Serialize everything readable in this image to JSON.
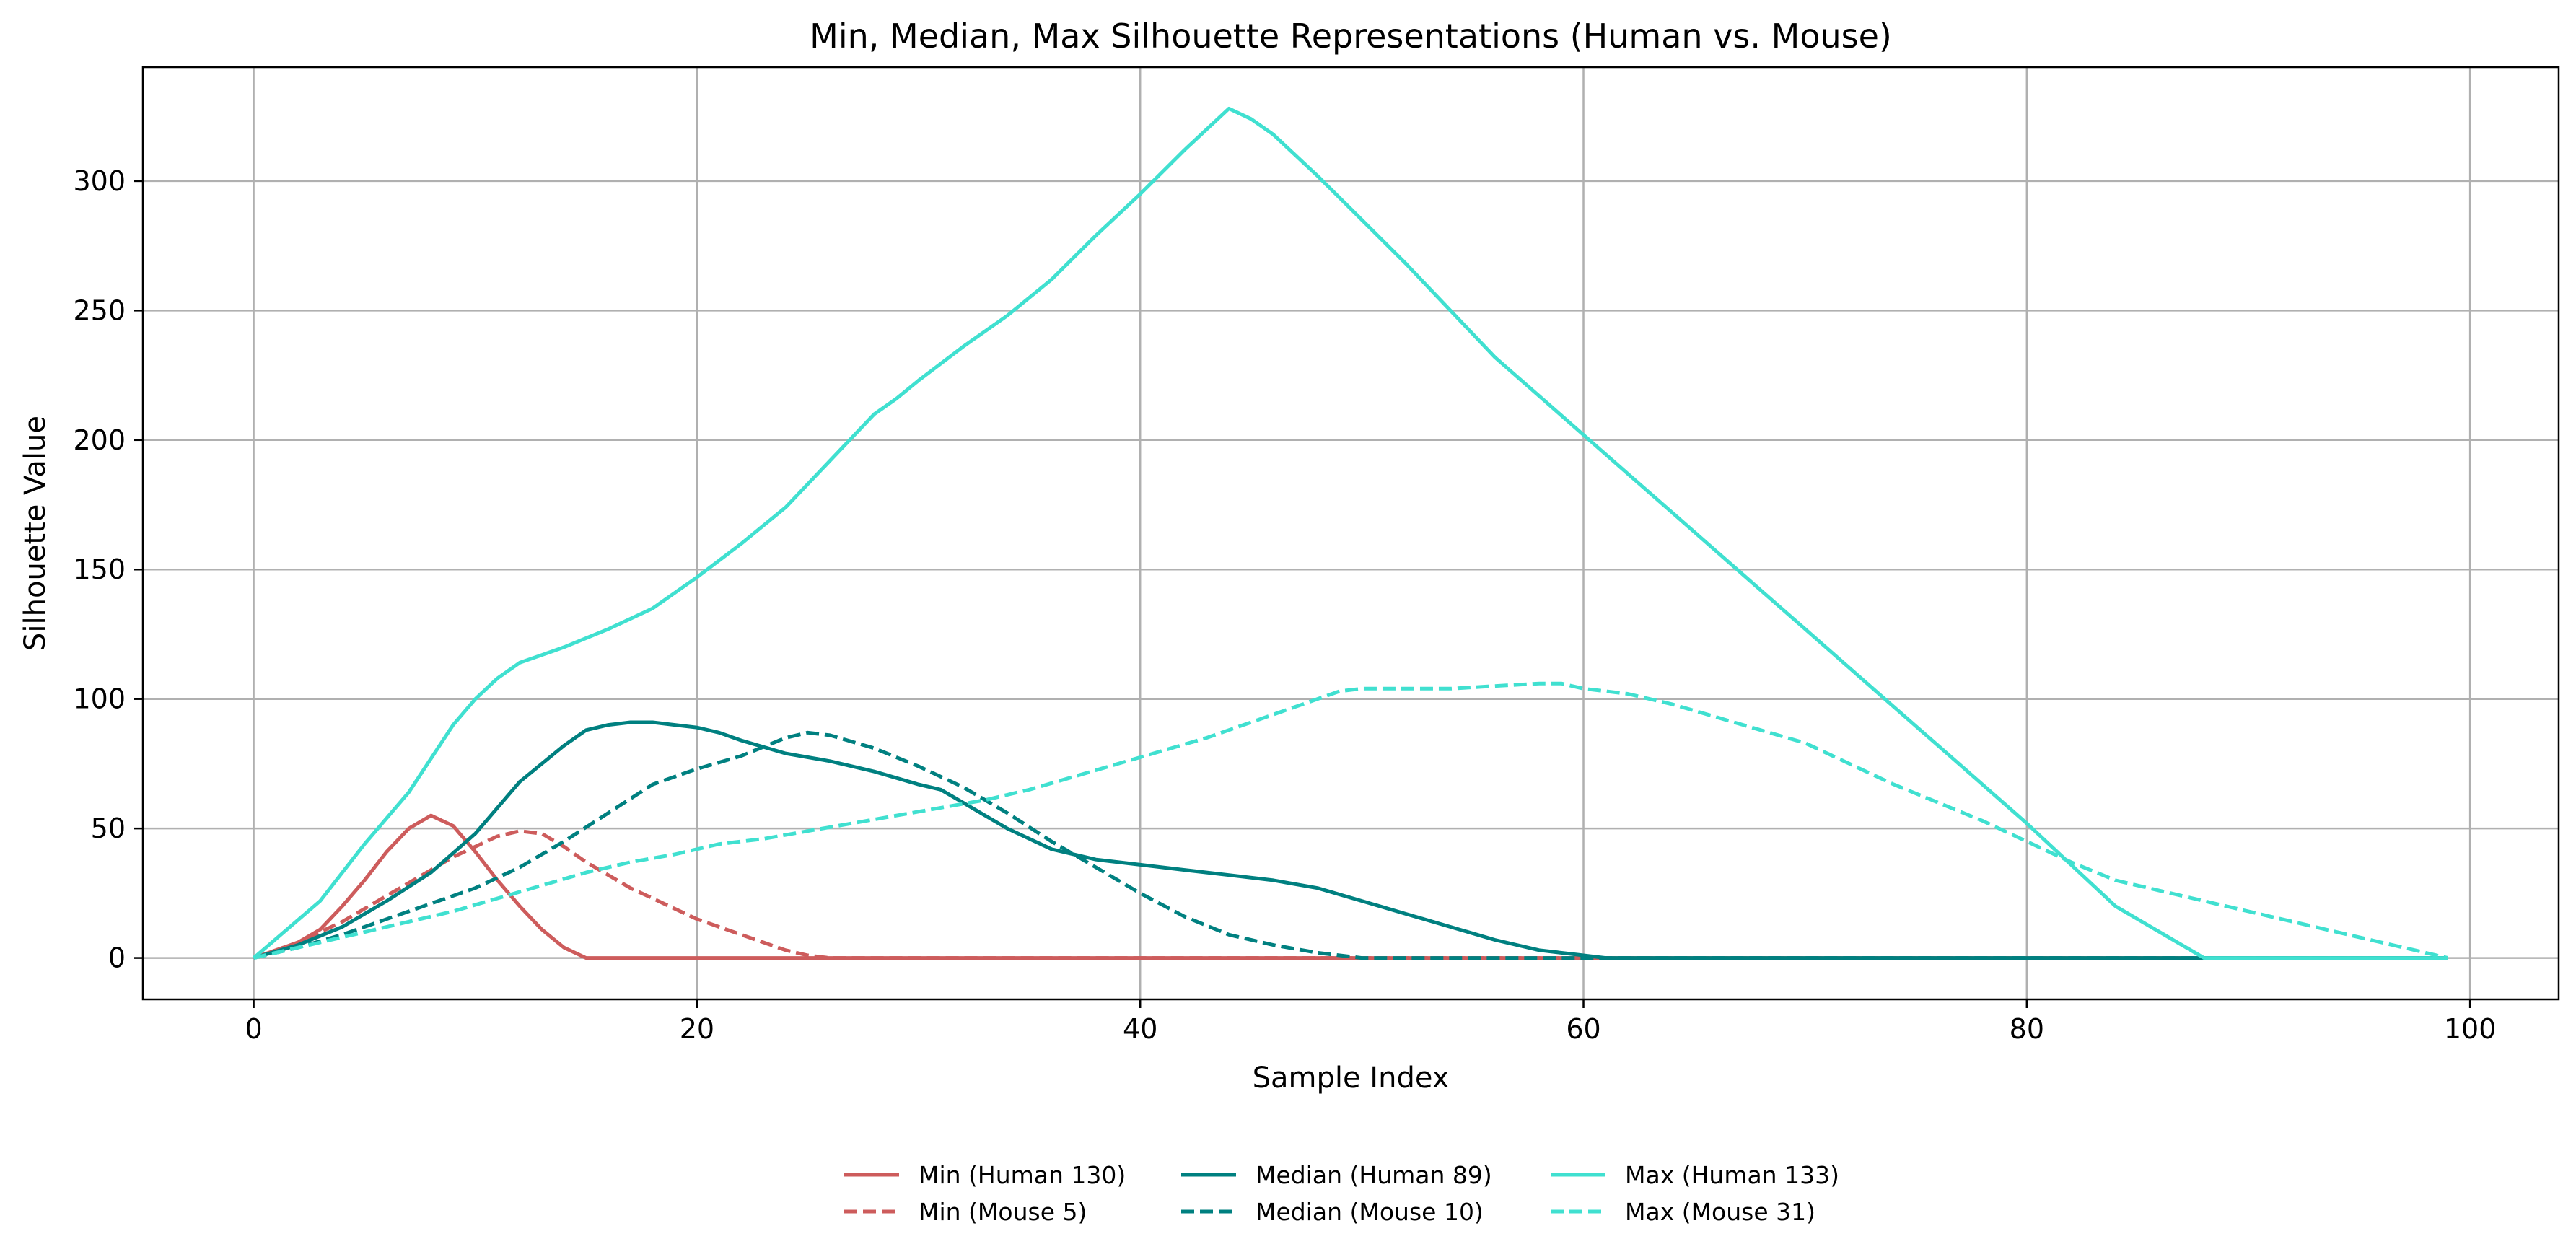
{
  "chart_data": {
    "type": "line",
    "title": "Min, Median, Max Silhouette Representations (Human vs. Mouse)",
    "xlabel": "Sample Index",
    "ylabel": "Silhouette Value",
    "xlim": [
      -5,
      104
    ],
    "ylim": [
      -16,
      344
    ],
    "xticks": [
      0,
      20,
      40,
      60,
      80,
      100
    ],
    "yticks": [
      0,
      50,
      100,
      150,
      200,
      250,
      300
    ],
    "grid": true,
    "legend_position": "bottom-center",
    "series": [
      {
        "name": "Min (Human 130)",
        "color": "#cd5c5c",
        "dash": "solid",
        "x": [
          0,
          1,
          2,
          3,
          4,
          5,
          6,
          7,
          8,
          9,
          10,
          11,
          12,
          13,
          14,
          15,
          99
        ],
        "y": [
          0,
          3,
          6,
          11,
          20,
          30,
          41,
          50,
          55,
          51,
          41,
          30,
          20,
          11,
          4,
          0,
          0
        ]
      },
      {
        "name": "Min (Mouse 5)",
        "color": "#cd5c5c",
        "dash": "dashed",
        "x": [
          0,
          1,
          2,
          3,
          4,
          5,
          6,
          7,
          8,
          9,
          10,
          11,
          12,
          13,
          14,
          15,
          16,
          17,
          18,
          19,
          20,
          21,
          22,
          23,
          24,
          25,
          26,
          99
        ],
        "y": [
          0,
          3,
          6,
          10,
          14,
          19,
          24,
          29,
          34,
          39,
          43,
          47,
          49,
          48,
          43,
          37,
          32,
          27,
          23,
          19,
          15,
          12,
          9,
          6,
          3,
          1,
          0,
          0
        ]
      },
      {
        "name": "Median (Human 89)",
        "color": "#008080",
        "dash": "solid",
        "x": [
          0,
          2,
          4,
          6,
          8,
          10,
          12,
          14,
          15,
          16,
          17,
          18,
          19,
          20,
          21,
          22,
          24,
          26,
          28,
          30,
          31,
          32,
          34,
          36,
          38,
          40,
          42,
          44,
          46,
          48,
          50,
          52,
          54,
          56,
          58,
          60,
          61,
          99
        ],
        "y": [
          0,
          5,
          12,
          22,
          33,
          48,
          68,
          82,
          88,
          90,
          91,
          91,
          90,
          89,
          87,
          84,
          79,
          76,
          72,
          67,
          65,
          60,
          50,
          42,
          38,
          36,
          34,
          32,
          30,
          27,
          22,
          17,
          12,
          7,
          3,
          1,
          0,
          0
        ]
      },
      {
        "name": "Median (Mouse 10)",
        "color": "#008080",
        "dash": "dashed",
        "x": [
          0,
          2,
          4,
          6,
          8,
          10,
          12,
          14,
          16,
          18,
          20,
          22,
          24,
          25,
          26,
          28,
          30,
          32,
          34,
          36,
          38,
          40,
          42,
          44,
          46,
          48,
          50,
          99
        ],
        "y": [
          0,
          4,
          9,
          15,
          21,
          27,
          35,
          45,
          56,
          67,
          73,
          78,
          85,
          87,
          86,
          81,
          74,
          66,
          56,
          45,
          35,
          25,
          16,
          9,
          5,
          2,
          0,
          0
        ]
      },
      {
        "name": "Max (Human 133)",
        "color": "#40e0d0",
        "dash": "solid",
        "x": [
          0,
          3,
          5,
          7,
          9,
          10,
          11,
          12,
          13,
          14,
          16,
          18,
          20,
          22,
          24,
          26,
          28,
          29,
          30,
          32,
          34,
          36,
          38,
          40,
          42,
          44,
          45,
          46,
          48,
          50,
          52,
          54,
          56,
          58,
          60,
          62,
          64,
          66,
          68,
          70,
          72,
          74,
          76,
          78,
          80,
          82,
          84,
          86,
          88,
          89,
          99
        ],
        "y": [
          0,
          22,
          44,
          64,
          90,
          100,
          108,
          114,
          117,
          120,
          127,
          135,
          147,
          160,
          174,
          192,
          210,
          216,
          223,
          236,
          248,
          262,
          279,
          295,
          312,
          328,
          324,
          318,
          302,
          285,
          268,
          250,
          232,
          217,
          202,
          187,
          172,
          157,
          142,
          127,
          112,
          97,
          82,
          67,
          52,
          36,
          20,
          10,
          0,
          0,
          0
        ]
      },
      {
        "name": "Max (Mouse 31)",
        "color": "#40e0d0",
        "dash": "dashed",
        "x": [
          0,
          3,
          5,
          7,
          9,
          11,
          13,
          15,
          17,
          19,
          21,
          23,
          25,
          27,
          29,
          31,
          33,
          35,
          37,
          39,
          41,
          43,
          45,
          47,
          49,
          50,
          52,
          54,
          56,
          58,
          59,
          60,
          62,
          64,
          66,
          68,
          70,
          72,
          74,
          76,
          78,
          80,
          82,
          84,
          86,
          88,
          90,
          92,
          94,
          96,
          98,
          99
        ],
        "y": [
          0,
          6,
          10,
          14,
          18,
          23,
          28,
          33,
          37,
          40,
          44,
          46,
          49,
          52,
          55,
          58,
          61,
          65,
          70,
          75,
          80,
          85,
          91,
          97,
          103,
          104,
          104,
          104,
          105,
          106,
          106,
          104,
          102,
          98,
          93,
          88,
          83,
          75,
          67,
          60,
          53,
          45,
          37,
          30,
          26,
          22,
          18,
          14,
          10,
          6,
          2,
          0
        ]
      }
    ]
  }
}
